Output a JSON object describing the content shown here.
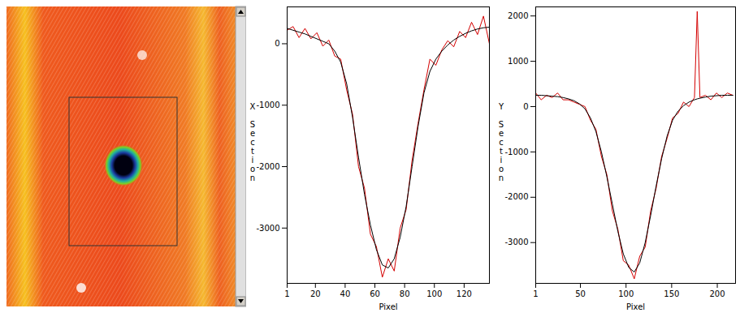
{
  "chart_data": [
    {
      "type": "line",
      "ylabel": "X Section",
      "xlabel": "Pixel",
      "x": [
        1,
        5,
        9,
        13,
        17,
        21,
        25,
        29,
        33,
        37,
        41,
        45,
        49,
        53,
        57,
        61,
        65,
        69,
        73,
        77,
        81,
        85,
        89,
        93,
        97,
        101,
        105,
        109,
        113,
        117,
        121,
        125,
        129,
        133,
        137
      ],
      "series": [
        {
          "color": "#d40000",
          "values": [
            220,
            280,
            100,
            250,
            80,
            180,
            -40,
            60,
            -200,
            -250,
            -750,
            -1150,
            -2000,
            -2350,
            -3100,
            -3300,
            -3800,
            -3500,
            -3700,
            -3000,
            -2700,
            -1900,
            -1300,
            -750,
            -250,
            -350,
            -100,
            50,
            -50,
            200,
            100,
            350,
            150,
            450,
            0
          ]
        },
        {
          "color": "#000000",
          "values": [
            250,
            220,
            190,
            160,
            120,
            80,
            40,
            0,
            -120,
            -300,
            -650,
            -1200,
            -1850,
            -2450,
            -2950,
            -3350,
            -3600,
            -3650,
            -3500,
            -3150,
            -2650,
            -2000,
            -1350,
            -800,
            -450,
            -250,
            -120,
            -20,
            60,
            120,
            170,
            210,
            240,
            260,
            270
          ]
        }
      ],
      "xlim": [
        1,
        137
      ],
      "xticks": [
        1,
        20,
        40,
        60,
        80,
        100,
        120
      ],
      "ylim": [
        -3900,
        600
      ],
      "yticks": [
        0,
        -1000,
        -2000,
        -3000
      ],
      "grid": false
    },
    {
      "type": "line",
      "ylabel": "Y Section",
      "xlabel": "Pixel",
      "x": [
        1,
        7,
        13,
        19,
        25,
        31,
        37,
        43,
        49,
        55,
        61,
        67,
        73,
        79,
        85,
        91,
        97,
        103,
        109,
        115,
        121,
        127,
        133,
        139,
        145,
        151,
        157,
        163,
        169,
        175,
        178,
        181,
        187,
        193,
        199,
        205,
        211,
        217
      ],
      "series": [
        {
          "color": "#d40000",
          "values": [
            300,
            150,
            250,
            200,
            300,
            150,
            150,
            100,
            50,
            0,
            -300,
            -500,
            -1100,
            -1500,
            -2300,
            -2700,
            -3400,
            -3500,
            -3800,
            -3300,
            -3100,
            -2300,
            -1800,
            -1100,
            -700,
            -250,
            -150,
            100,
            0,
            200,
            2100,
            200,
            250,
            150,
            300,
            200,
            300,
            250
          ]
        },
        {
          "color": "#000000",
          "values": [
            250,
            250,
            240,
            230,
            220,
            200,
            170,
            130,
            60,
            -50,
            -250,
            -550,
            -1000,
            -1550,
            -2150,
            -2750,
            -3250,
            -3550,
            -3650,
            -3450,
            -3000,
            -2400,
            -1750,
            -1150,
            -650,
            -300,
            -100,
            20,
            100,
            150,
            170,
            185,
            210,
            230,
            240,
            250,
            250,
            250
          ]
        }
      ],
      "xlim": [
        1,
        220
      ],
      "xticks": [
        1,
        50,
        100,
        150,
        200
      ],
      "ylim": [
        -3900,
        2200
      ],
      "yticks": [
        2000,
        1000,
        0,
        -1000,
        -2000,
        -3000
      ],
      "grid": false
    }
  ]
}
